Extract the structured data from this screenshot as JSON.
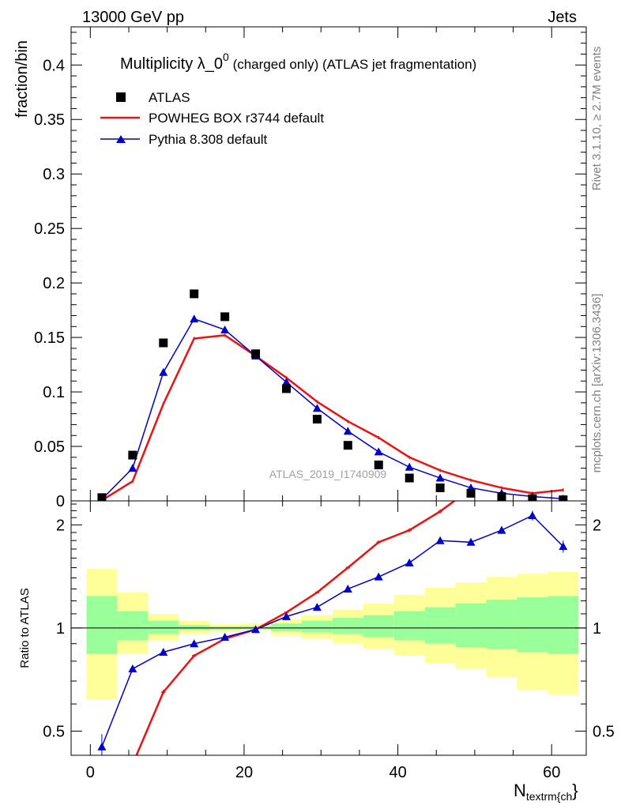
{
  "header": {
    "left": "13000 GeV pp",
    "right": "Jets"
  },
  "side_labels": {
    "rivet": "Rivet 3.1.10, ≥ 2.7M events",
    "source": "mcplots.cern.ch [arXiv:1306.3436]"
  },
  "chart_data": [
    {
      "type": "scatter",
      "panel": "main",
      "title": {
        "main": "Multiplicity λ_0",
        "superscript": "0",
        "suffix": " (charged only) (ATLAS jet fragmentation)"
      },
      "ylabel": "fraction/bin",
      "watermark": "ATLAS_2019_I1740909",
      "xlim": [
        -2.5,
        64.5
      ],
      "ylim": [
        0,
        0.435
      ],
      "yticks": [
        0,
        0.05,
        0.1,
        0.15,
        0.2,
        0.25,
        0.3,
        0.35,
        0.4
      ],
      "ytick_labels": [
        "0",
        "0.05",
        "0.1",
        "0.15",
        "0.2",
        "0.25",
        "0.3",
        "0.35",
        "0.4"
      ],
      "legend_position": "top-left",
      "colors": {
        "atlas": "#000000",
        "powheg": "#ee1111",
        "pythia": "#0000cc"
      },
      "series": [
        {
          "name": "ATLAS",
          "style": "square-markers",
          "x": [
            1.5,
            5.5,
            9.5,
            13.5,
            17.5,
            21.5,
            25.5,
            29.5,
            33.5,
            37.5,
            41.5,
            45.5,
            49.5,
            53.5,
            57.5,
            61.5
          ],
          "values": [
            0.003,
            0.042,
            0.145,
            0.19,
            0.169,
            0.135,
            0.103,
            0.075,
            0.051,
            0.033,
            0.021,
            0.012,
            0.007,
            0.004,
            0.002,
            0.001
          ]
        },
        {
          "name": "POWHEG BOX r3744 default",
          "style": "line",
          "x": [
            1.5,
            5.5,
            9.5,
            13.5,
            17.5,
            21.5,
            25.5,
            29.5,
            33.5,
            37.5,
            41.5,
            45.5,
            49.5,
            53.5,
            57.5,
            61.5
          ],
          "values": [
            0.0005,
            0.018,
            0.089,
            0.149,
            0.152,
            0.133,
            0.113,
            0.091,
            0.073,
            0.058,
            0.04,
            0.028,
            0.019,
            0.012,
            0.007,
            0.01
          ]
        },
        {
          "name": "Pythia 8.308 default",
          "style": "line-triangles",
          "x": [
            1.5,
            5.5,
            9.5,
            13.5,
            17.5,
            21.5,
            25.5,
            29.5,
            33.5,
            37.5,
            41.5,
            45.5,
            49.5,
            53.5,
            57.5,
            61.5
          ],
          "values": [
            0.0015,
            0.03,
            0.118,
            0.167,
            0.157,
            0.133,
            0.109,
            0.085,
            0.064,
            0.045,
            0.031,
            0.021,
            0.012,
            0.007,
            0.004,
            0.002
          ]
        }
      ]
    },
    {
      "type": "line",
      "panel": "ratio",
      "ylabel": "Ratio to ATLAS",
      "xlabel": "N",
      "xlabel_subscript": "textrm{ch",
      "xlabel_suffix": "}",
      "xlim": [
        -2.5,
        64.5
      ],
      "ylim": [
        0.425,
        2.35
      ],
      "log_y": true,
      "xticks": [
        0,
        20,
        40,
        60
      ],
      "xtick_labels": [
        "0",
        "20",
        "40",
        "60"
      ],
      "yticks": [
        0.5,
        1,
        2
      ],
      "ytick_labels": [
        "0.5",
        "1",
        "2"
      ],
      "reference_line": 1,
      "colors": {
        "band_outer": "#ffff99",
        "band_inner": "#99ff99"
      },
      "uncertainty_bands": {
        "bin_edges": [
          -0.5,
          3.5,
          7.5,
          11.5,
          15.5,
          19.5,
          23.5,
          27.5,
          31.5,
          35.5,
          39.5,
          43.5,
          47.5,
          51.5,
          55.5,
          59.5,
          63.5
        ],
        "outer_low": [
          0.62,
          0.84,
          0.92,
          0.96,
          0.975,
          0.985,
          0.95,
          0.93,
          0.9,
          0.87,
          0.83,
          0.79,
          0.76,
          0.72,
          0.66,
          0.64
        ],
        "outer_high": [
          1.49,
          1.27,
          1.1,
          1.05,
          1.025,
          1.03,
          1.06,
          1.09,
          1.13,
          1.18,
          1.25,
          1.31,
          1.36,
          1.41,
          1.44,
          1.46
        ],
        "inner_low": [
          0.84,
          0.92,
          0.96,
          0.985,
          0.99,
          0.992,
          0.98,
          0.97,
          0.96,
          0.94,
          0.92,
          0.9,
          0.88,
          0.87,
          0.85,
          0.84
        ],
        "inner_high": [
          1.24,
          1.12,
          1.05,
          1.02,
          1.01,
          1.012,
          1.03,
          1.05,
          1.07,
          1.09,
          1.12,
          1.15,
          1.18,
          1.21,
          1.23,
          1.24
        ]
      },
      "series": [
        {
          "name": "POWHEG BOX r3744 default",
          "x": [
            5.5,
            9.5,
            13.5,
            17.5,
            21.5,
            25.5,
            29.5,
            33.5,
            37.5,
            41.5,
            45.5,
            49.5
          ],
          "values": [
            0.4,
            0.65,
            0.83,
            0.93,
            0.99,
            1.11,
            1.27,
            1.5,
            1.78,
            1.93,
            2.19,
            2.55
          ],
          "errors": [
            0.015,
            0.01,
            0.008,
            0.006,
            0.006,
            0.008,
            0.01,
            0.015,
            0.02,
            0.025,
            0.03,
            0.04
          ]
        },
        {
          "name": "Pythia 8.308 default",
          "x": [
            1.5,
            5.5,
            9.5,
            13.5,
            17.5,
            21.5,
            25.5,
            29.5,
            33.5,
            37.5,
            41.5,
            45.5,
            49.5,
            53.5,
            57.5,
            61.5
          ],
          "values": [
            0.45,
            0.76,
            0.85,
            0.9,
            0.94,
            0.99,
            1.08,
            1.15,
            1.3,
            1.41,
            1.55,
            1.8,
            1.78,
            1.93,
            2.13,
            1.73
          ],
          "errors": [
            0.04,
            0.01,
            0.008,
            0.006,
            0.006,
            0.006,
            0.008,
            0.01,
            0.012,
            0.015,
            0.02,
            0.025,
            0.04,
            0.05,
            0.07,
            0.07
          ]
        }
      ]
    }
  ]
}
